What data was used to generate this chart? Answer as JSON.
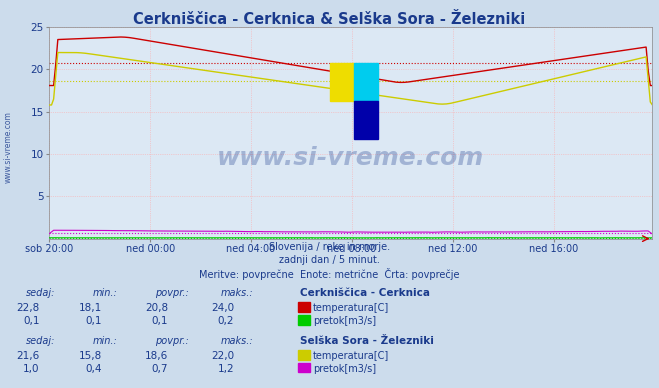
{
  "title": "Cerkniščica - Cerknica & Selška Sora - Železniki",
  "title_color": "#1a3a8c",
  "bg_color": "#ccdcec",
  "plot_bg_color": "#dce8f4",
  "ylabel_color": "#1a3a8c",
  "xlabel_color": "#1a3a8c",
  "xticklabels": [
    "sob 20:00",
    "ned 00:00",
    "ned 04:00",
    "ned 08:00",
    "ned 12:00",
    "ned 16:00"
  ],
  "xtick_positions": [
    0,
    48,
    96,
    144,
    192,
    240
  ],
  "ylim": [
    0,
    25
  ],
  "yticks": [
    5,
    10,
    15,
    20,
    25
  ],
  "n_points": 288,
  "watermark_text": "www.si-vreme.com",
  "footer_lines": [
    "Slovenija / reke in morje.",
    "zadnji dan / 5 minut.",
    "Meritve: povprečne  Enote: metrične  Črta: povprečje"
  ],
  "station1_name": "Cerkniščica - Cerknica",
  "station1_temp_color": "#cc0000",
  "station1_flow_color": "#00cc00",
  "station1_sedaj": "22,8",
  "station1_min": "18,1",
  "station1_povpr": "20,8",
  "station1_maks": "24,0",
  "station1_flow_sedaj": "0,1",
  "station1_flow_min": "0,1",
  "station1_flow_povpr": "0,1",
  "station1_flow_maks": "0,2",
  "station2_name": "Selška Sora - Železniki",
  "station2_temp_color": "#cccc00",
  "station2_flow_color": "#cc00cc",
  "station2_sedaj": "21,6",
  "station2_min": "15,8",
  "station2_povpr": "18,6",
  "station2_maks": "22,0",
  "station2_flow_sedaj": "1,0",
  "station2_flow_min": "0,4",
  "station2_flow_povpr": "0,7",
  "station2_flow_maks": "1,2",
  "avg1_temp": 20.8,
  "avg2_temp": 18.6,
  "avg1_flow": 0.1,
  "avg2_flow": 0.7,
  "logo_colors": [
    "#eedd00",
    "#00ccee",
    "#0000aa"
  ]
}
